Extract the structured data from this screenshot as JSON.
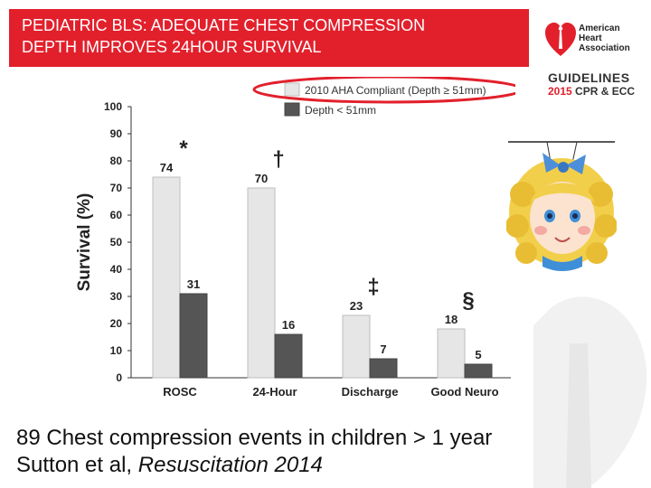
{
  "slide": {
    "title_lines": [
      "PEDIATRIC BLS: ADEQUATE CHEST COMPRESSION",
      "DEPTH IMPROVES 24HOUR  SURVIVAL"
    ],
    "footer_line1": "89 Chest compression events in children > 1 year",
    "footer_citation_authors": "Sutton et al, ",
    "footer_citation_journal": "Resuscitation 2014"
  },
  "logo": {
    "org_lines": [
      "American",
      "Heart",
      "Association"
    ],
    "guidelines": "GUIDELINES",
    "year": "2015",
    "cpr": "CPR & ECC"
  },
  "colors": {
    "banner": "#e2202c",
    "series_compliant": "#e6e6e6",
    "series_shallow": "#555555",
    "highlight_ellipse": "#e2202c"
  },
  "chart_data": {
    "type": "bar",
    "ylabel": "Survival (%)",
    "xlabel": "",
    "ylim": [
      0,
      100
    ],
    "yticks": [
      0,
      10,
      20,
      30,
      40,
      50,
      60,
      70,
      80,
      90,
      100
    ],
    "categories": [
      "ROSC",
      "24-Hour",
      "Discharge",
      "Good Neuro"
    ],
    "series": [
      {
        "name": "2010 AHA Compliant (Depth ≥ 51mm)",
        "values": [
          74,
          70,
          23,
          18
        ]
      },
      {
        "name": "Depth < 51mm",
        "values": [
          31,
          16,
          7,
          5
        ]
      }
    ],
    "significance_markers": [
      "*",
      "†",
      "‡",
      "§"
    ],
    "grid": false,
    "legend": "top"
  }
}
